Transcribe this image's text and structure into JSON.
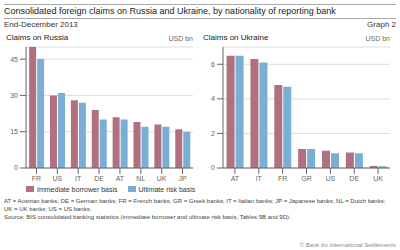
{
  "title": "Consolidated foreign claims on Russia and Ukraine, by nationality of reporting bank",
  "subtitle": "End-December 2013",
  "annotations": [
    "Graph 2",
    "AT = Austrian banks; DE = German banks; FR = French banks; GR = Greek banks; IT = Italian banks; JP = Japanese banks; NL = Dutch banks;",
    "UK = UK banks; US = US banks.",
    "Source: BIS consolidated banking statistics (immediate borrower and ultimate risk basis, Tables 9B and 9D).",
    "© Bank for International Settlements"
  ],
  "chart_data": [
    {
      "type": "bar",
      "title": "Claims on Russia",
      "ylabel": "USD bn",
      "categories": [
        "FR",
        "US",
        "IT",
        "DE",
        "AT",
        "NL",
        "UK",
        "JP"
      ],
      "series": [
        {
          "name": "Immediate borrower basis",
          "color": "#b07080",
          "values": [
            50,
            30,
            28,
            24,
            21,
            19,
            18,
            16
          ]
        },
        {
          "name": "Ultimate risk basis",
          "color": "#7aaed4",
          "values": [
            45,
            31,
            27,
            20,
            20,
            17,
            17,
            15
          ]
        }
      ],
      "ylim": [
        0,
        50
      ],
      "yticks": [
        0,
        15,
        30,
        45
      ],
      "grid": true,
      "legend": "lower left"
    },
    {
      "type": "bar",
      "title": "Claims on Ukraine",
      "ylabel": "USD bn",
      "categories": [
        "AT",
        "IT",
        "FR",
        "GR",
        "US",
        "DE",
        "UK"
      ],
      "series": [
        {
          "name": "Immediate borrower basis",
          "color": "#b07080",
          "values": [
            6.5,
            6.3,
            4.8,
            1.1,
            1.0,
            0.9,
            0.12
          ]
        },
        {
          "name": "Ultimate risk basis",
          "color": "#7aaed4",
          "values": [
            6.5,
            6.1,
            4.7,
            1.1,
            0.85,
            0.85,
            0.1
          ]
        }
      ],
      "ylim": [
        0,
        7
      ],
      "yticks": [
        0,
        2,
        4,
        6
      ],
      "grid": true
    }
  ]
}
